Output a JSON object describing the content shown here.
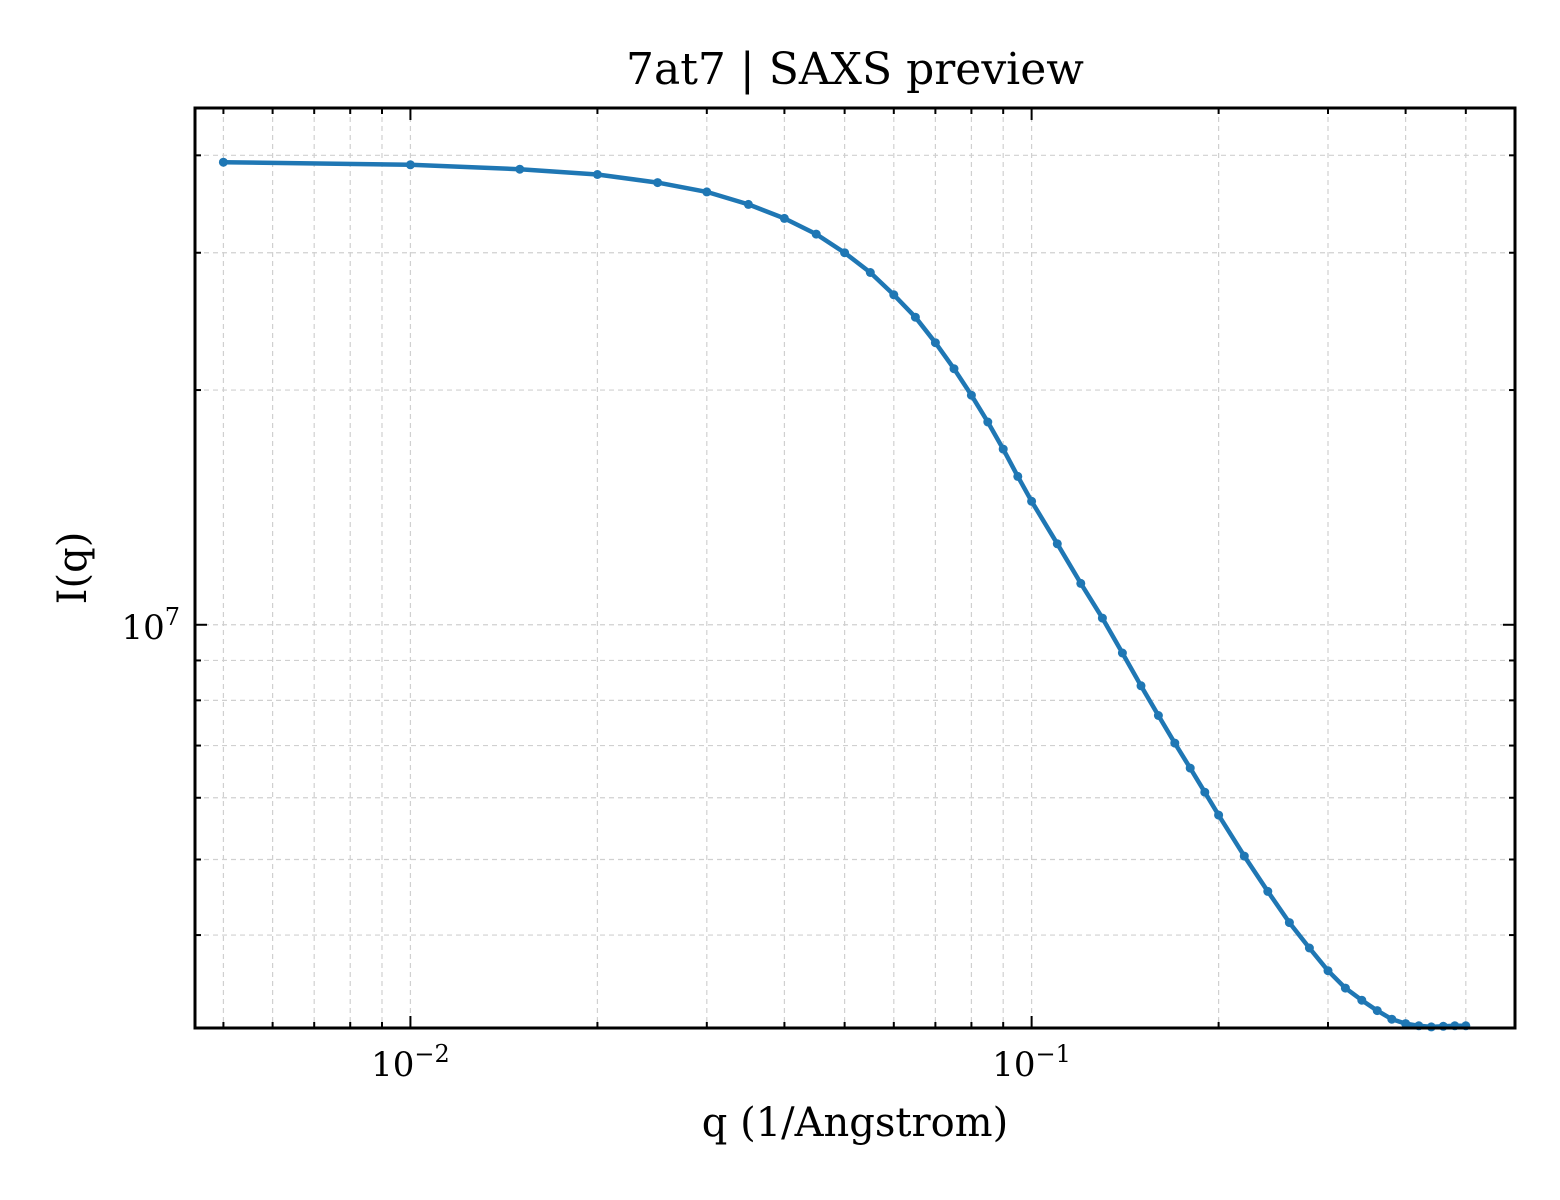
{
  "chart_data": {
    "type": "line",
    "title": "7at7 | SAXS preview",
    "xlabel": "q (1/Angstrom)",
    "ylabel": "I(q)",
    "xscale": "log",
    "yscale": "log",
    "xlim": [
      0.0045,
      0.6
    ],
    "ylim": [
      3040000,
      46000000
    ],
    "grid": true,
    "color": "#1f77b4",
    "x_ticks": [
      {
        "value": 0.01,
        "mantissa": "10",
        "exponent": "−2"
      },
      {
        "value": 0.1,
        "mantissa": "10",
        "exponent": "−1"
      }
    ],
    "y_ticks": [
      {
        "value": 10000000,
        "mantissa": "10",
        "exponent": "7"
      }
    ],
    "series": [
      {
        "x": [
          0.005,
          0.01,
          0.015,
          0.02,
          0.025,
          0.03,
          0.035,
          0.04,
          0.045,
          0.05,
          0.055,
          0.06,
          0.065,
          0.07,
          0.075,
          0.08,
          0.085,
          0.09,
          0.095,
          0.1,
          0.11,
          0.12,
          0.13,
          0.14,
          0.15,
          0.16,
          0.17,
          0.18,
          0.19,
          0.2,
          0.22,
          0.24,
          0.26,
          0.28,
          0.3,
          0.32,
          0.34,
          0.36,
          0.38,
          0.4,
          0.42,
          0.44,
          0.46,
          0.48,
          0.5
        ],
        "y": [
          39200000,
          38900000,
          38400000,
          37800000,
          36900000,
          35900000,
          34600000,
          33200000,
          31700000,
          30000000,
          28300000,
          26500000,
          24800000,
          23000000,
          21300000,
          19700000,
          18200000,
          16800000,
          15500000,
          14400000,
          12700000,
          11300000,
          10200000,
          9200000,
          8350000,
          7650000,
          7050000,
          6550000,
          6100000,
          5700000,
          5050000,
          4550000,
          4150000,
          3850000,
          3600000,
          3420000,
          3300000,
          3200000,
          3120000,
          3080000,
          3060000,
          3050000,
          3055000,
          3060000,
          3060000
        ]
      }
    ]
  }
}
